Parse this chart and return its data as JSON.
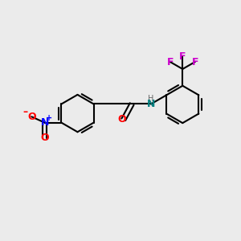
{
  "bg_color": "#ebebeb",
  "bond_color": "#000000",
  "bond_width": 1.5,
  "atom_colors": {
    "O": "#ff0000",
    "N_blue": "#0000ff",
    "N_teal": "#008080",
    "F": "#cc00cc",
    "H": "#666666"
  },
  "figsize": [
    3.0,
    3.0
  ],
  "dpi": 100
}
